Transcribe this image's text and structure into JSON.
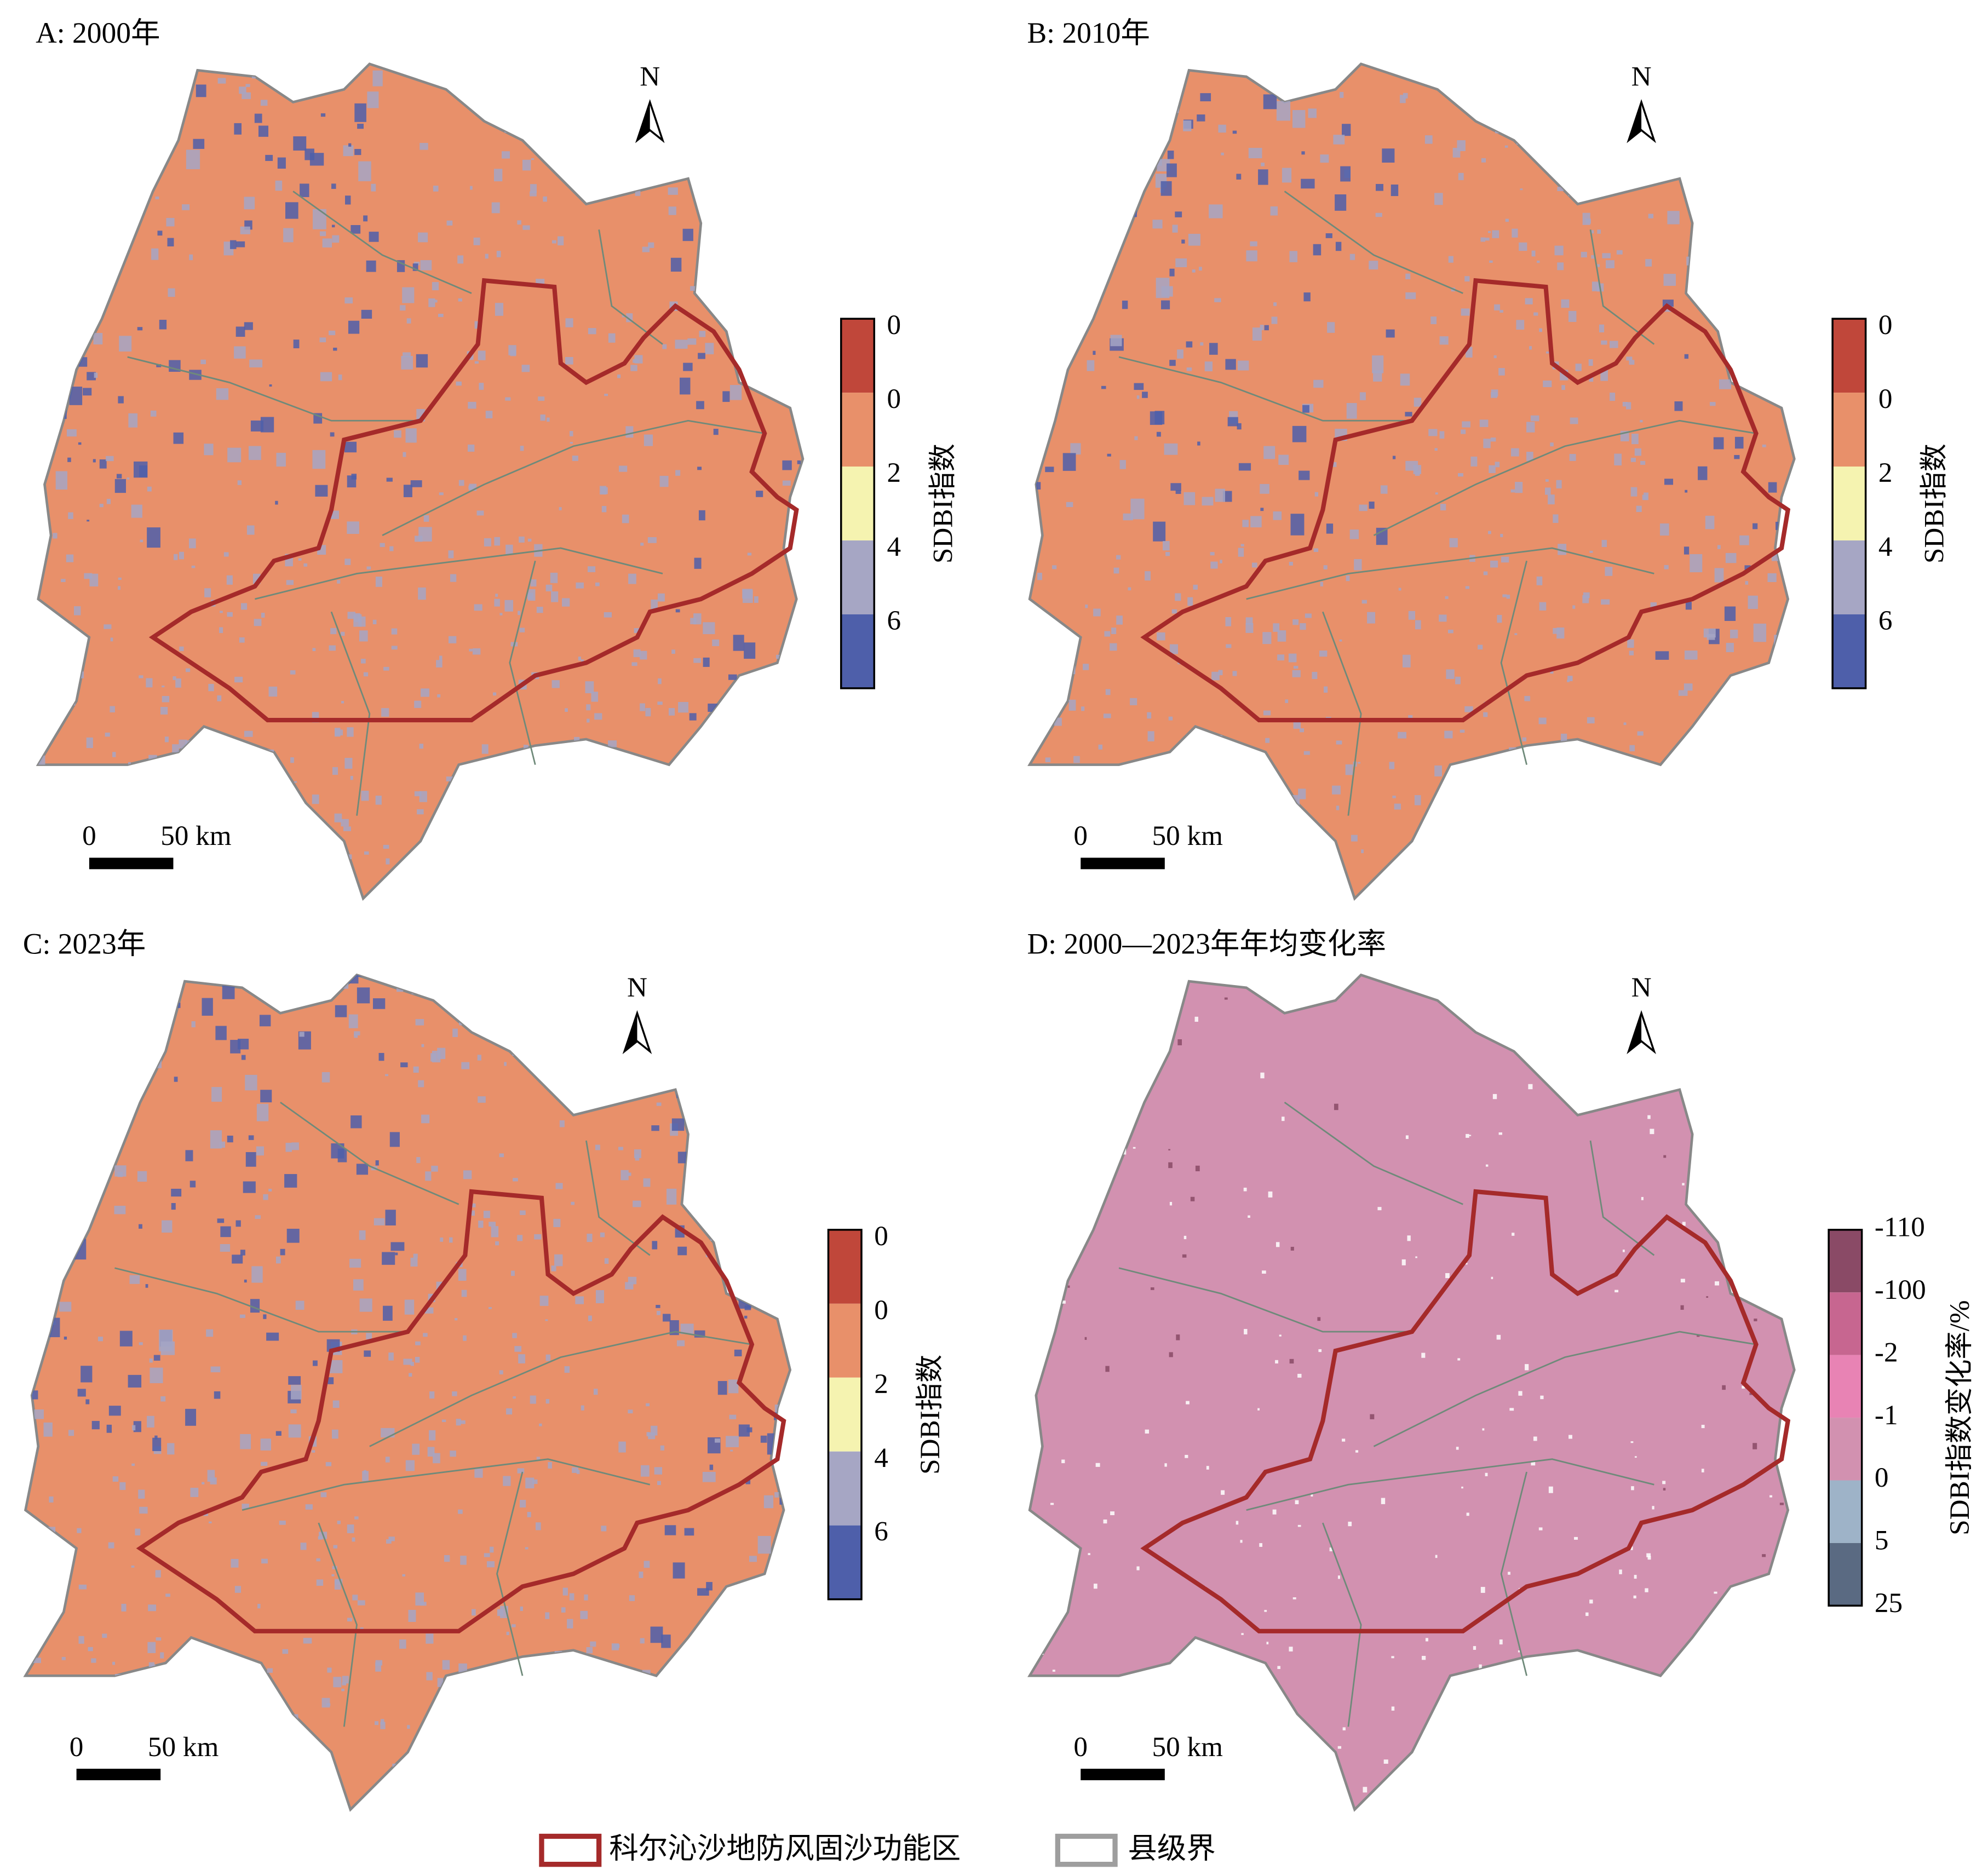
{
  "panels": [
    {
      "title": "A: 2000年",
      "north": "N",
      "scale_start": "0",
      "scale_end": "50 km",
      "base_color": "#e8906a",
      "patch_colors": [
        "#a6a6c4",
        "#4e5faa"
      ],
      "legend": {
        "title": "SDBI指数",
        "labels": [
          "0",
          "0",
          "2",
          "4",
          "6"
        ],
        "colors": [
          "#c0473a",
          "#e8906a",
          "#f5f3b0",
          "#a6a6c4",
          "#4e5faa"
        ]
      }
    },
    {
      "title": "B: 2010年",
      "north": "N",
      "scale_start": "0",
      "scale_end": "50 km",
      "base_color": "#e8906a",
      "patch_colors": [
        "#a6a6c4",
        "#4e5faa"
      ],
      "legend": {
        "title": "SDBI指数",
        "labels": [
          "0",
          "0",
          "2",
          "4",
          "6"
        ],
        "colors": [
          "#c0473a",
          "#e8906a",
          "#f5f3b0",
          "#a6a6c4",
          "#4e5faa"
        ]
      }
    },
    {
      "title": "C: 2023年",
      "north": "N",
      "scale_start": "0",
      "scale_end": "50 km",
      "base_color": "#e8906a",
      "patch_colors": [
        "#a6a6c4",
        "#4e5faa"
      ],
      "legend": {
        "title": "SDBI指数",
        "labels": [
          "0",
          "0",
          "2",
          "4",
          "6"
        ],
        "colors": [
          "#c0473a",
          "#e8906a",
          "#f5f3b0",
          "#a6a6c4",
          "#4e5faa"
        ]
      }
    },
    {
      "title": "D: 2000—2023年年均变化率",
      "north": "N",
      "scale_start": "0",
      "scale_end": "50 km",
      "base_color": "#d291b0",
      "patch_colors": [
        "#ffffff",
        "#8a4a66"
      ],
      "legend": {
        "title": "SDBI指数变化率/%",
        "labels": [
          "-110",
          "-100",
          "-2",
          "-1",
          "0",
          "5",
          "25"
        ],
        "colors": [
          "#8a4a66",
          "#c76690",
          "#e883b4",
          "#d291b0",
          "#9eb3c8",
          "#5a6a82"
        ]
      }
    }
  ],
  "legend": [
    {
      "label": "科尔沁沙地防风固沙功能区",
      "color": "#a52a2a"
    },
    {
      "label": "县级界",
      "color": "#9e9e9e"
    }
  ]
}
